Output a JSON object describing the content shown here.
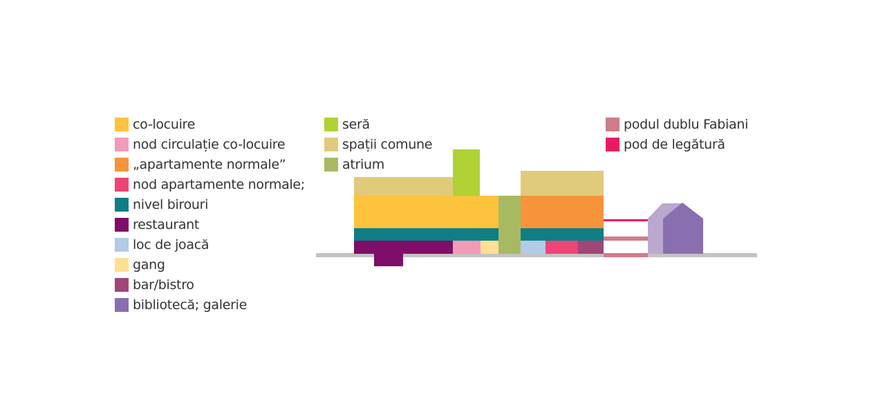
{
  "colors": {
    "co_locuire": "#fdc33c",
    "nod_circulatie": "#f49ab9",
    "apartamente_normale": "#f7933a",
    "nod_apartamente": "#ec4576",
    "nivel_birouri": "#0f7e85",
    "restaurant": "#7f0e6a",
    "loc_de_joaca": "#b2cbe6",
    "gang": "#fde093",
    "bar_bistro": "#9e4778",
    "biblioteca": "#8a6fb0",
    "biblioteca_light": "#bba8cf",
    "sera": "#b0d235",
    "spatii_comune": "#e0cb7b",
    "atrium": "#a7ba62",
    "podul_dublu": "#ce7d8a",
    "pod_legatura": "#e81c64",
    "ground": "#c4c2c2"
  },
  "legend": {
    "col1": [
      {
        "label": "co-locuire",
        "color": "#fdc33c"
      },
      {
        "label": "nod circulație co-locuire",
        "color": "#f49ab9"
      },
      {
        "label": "„apartamente normale”",
        "color": "#f7933a"
      },
      {
        "label": "nod apartamente normale;",
        "color": "#ec4576"
      },
      {
        "label": "nivel birouri",
        "color": "#0f7e85"
      },
      {
        "label": "restaurant",
        "color": "#7f0e6a"
      },
      {
        "label": "loc de joacă",
        "color": "#b2cbe6"
      },
      {
        "label": "gang",
        "color": "#fde093"
      },
      {
        "label": "bar/bistro",
        "color": "#9e4778"
      },
      {
        "label": "bibliotecă; galerie",
        "color": "#8a6fb0"
      }
    ],
    "col2": [
      {
        "label": "seră",
        "color": "#b0d235"
      },
      {
        "label": "spații comune",
        "color": "#e0cb7b"
      },
      {
        "label": "atrium",
        "color": "#a7ba62"
      }
    ],
    "col3": [
      {
        "label": "podul dublu Fabiani",
        "color": "#ce7d8a"
      },
      {
        "label": "pod de legătură",
        "color": "#e81c64"
      }
    ]
  }
}
